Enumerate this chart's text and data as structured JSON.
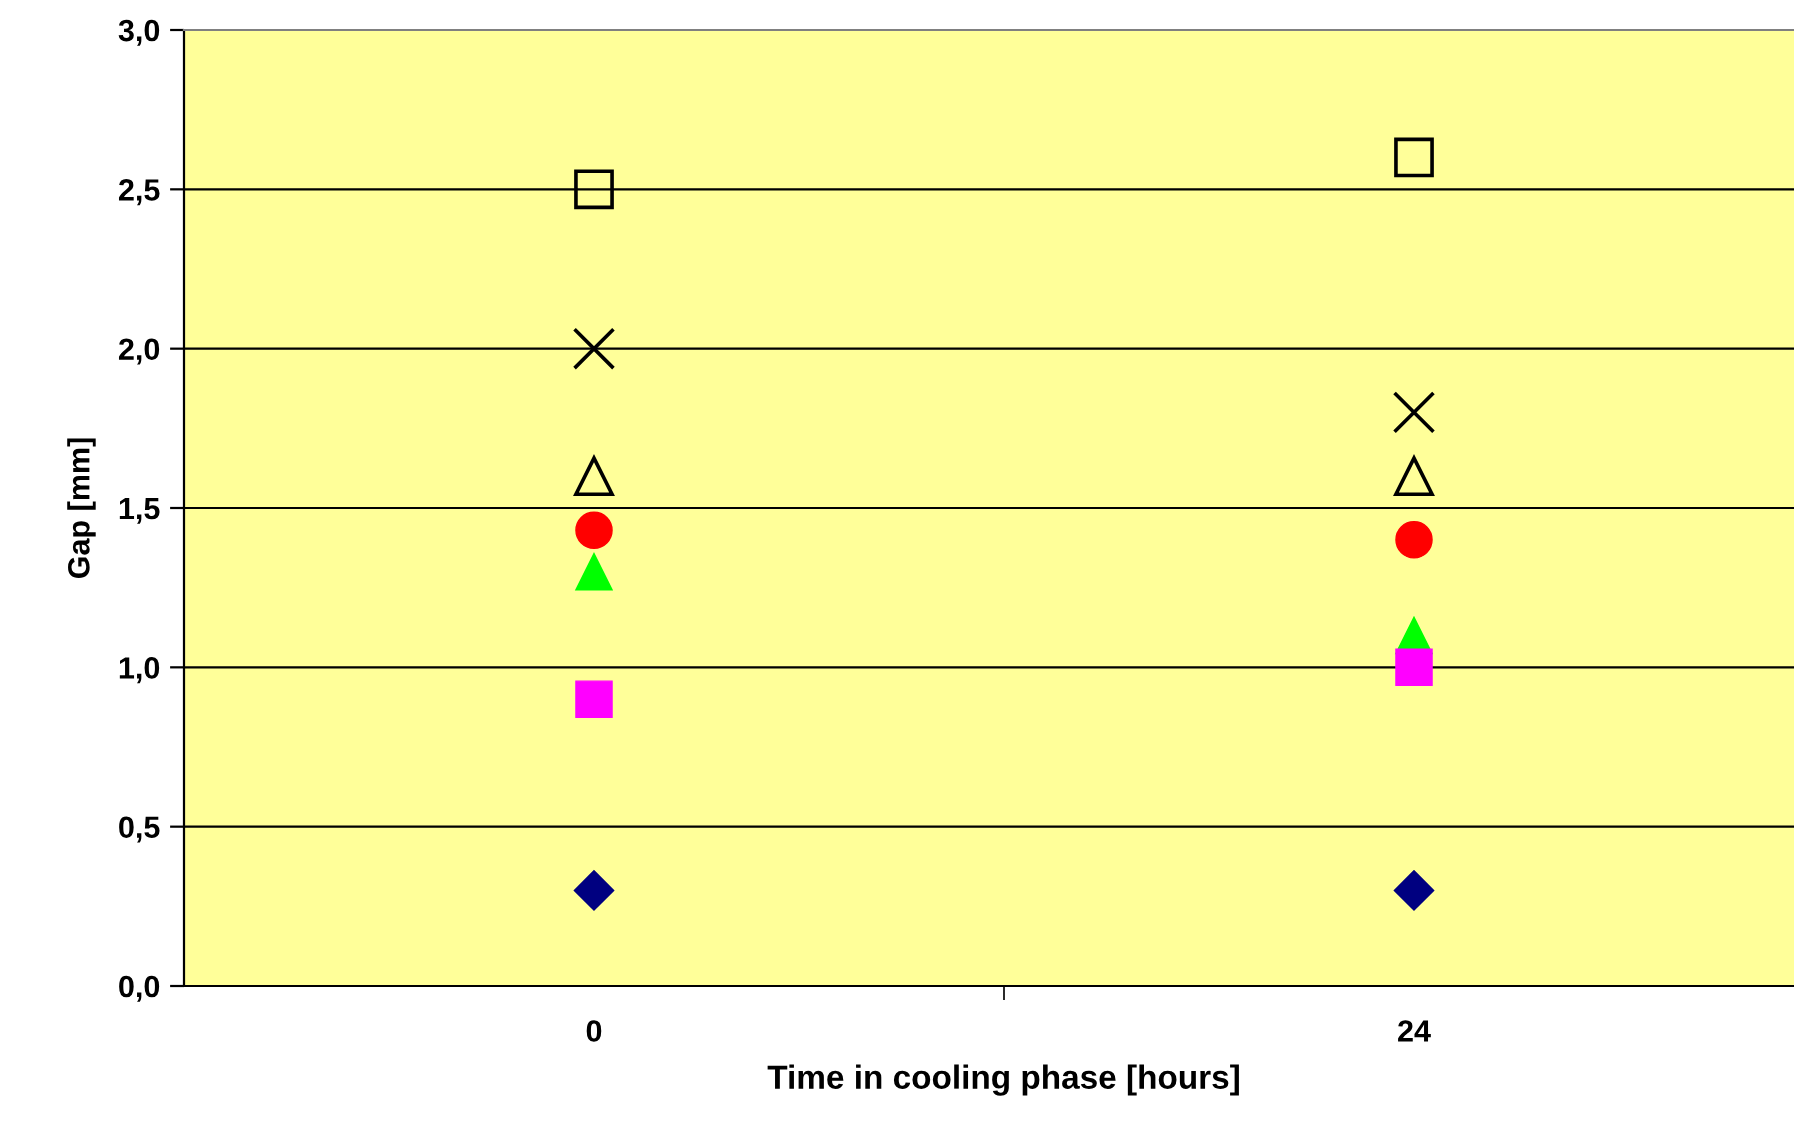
{
  "chart_data": {
    "type": "scatter",
    "xlabel": "Time in cooling phase [hours]",
    "ylabel": "Gap [mm]",
    "categories": [
      "0",
      "24"
    ],
    "series": [
      {
        "color": "#000000",
        "marker": "square",
        "values": [
          2.5,
          2.6
        ]
      },
      {
        "color": "#000000",
        "marker": "cross",
        "values": [
          2.0,
          1.8
        ]
      },
      {
        "color": "#000000",
        "marker": "triangle",
        "values": [
          1.6,
          1.6
        ]
      },
      {
        "color": "#ff0000",
        "marker": "circle",
        "values": [
          1.43,
          1.4
        ]
      },
      {
        "color": "#00ff00",
        "marker": "triangle",
        "values": [
          1.3,
          1.1
        ]
      },
      {
        "color": "#ff00ff",
        "marker": "square",
        "values": [
          0.9,
          1.0
        ]
      },
      {
        "color": "#000080",
        "marker": "diamond",
        "values": [
          0.3,
          0.3
        ]
      }
    ],
    "ylim": [
      0,
      3
    ],
    "yticks": [
      {
        "value": 0,
        "label": "0,0"
      },
      {
        "value": 0.5,
        "label": "0,5"
      },
      {
        "value": 1,
        "label": "1,0"
      },
      {
        "value": 1.5,
        "label": "1,5"
      },
      {
        "value": 2,
        "label": "2,0"
      },
      {
        "value": 2.5,
        "label": "2,5"
      },
      {
        "value": 3,
        "label": "3,0"
      }
    ],
    "grid": "y"
  }
}
